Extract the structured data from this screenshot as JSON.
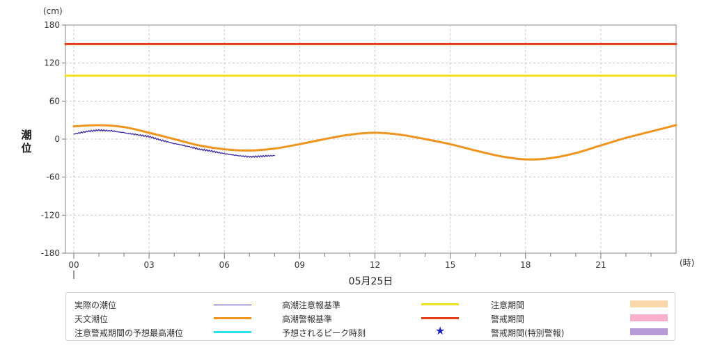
{
  "chart_data": {
    "type": "line",
    "y_unit": "(cm)",
    "x_unit": "(時)",
    "ylabel": "潮位",
    "date_label": "05月25日",
    "ylim": [
      -180,
      180
    ],
    "xlim": [
      0,
      24
    ],
    "y_ticks": [
      180,
      120,
      60,
      0,
      -60,
      -120,
      -180
    ],
    "x_ticks": [
      {
        "x": 0,
        "label": "00"
      },
      {
        "x": 3,
        "label": "03"
      },
      {
        "x": 6,
        "label": "06"
      },
      {
        "x": 9,
        "label": "09"
      },
      {
        "x": 12,
        "label": "12"
      },
      {
        "x": 15,
        "label": "15"
      },
      {
        "x": 18,
        "label": "18"
      },
      {
        "x": 21,
        "label": "21"
      }
    ],
    "grid": true,
    "series": [
      {
        "name": "天文潮位",
        "color": "#f0941e",
        "x": [
          0,
          1,
          2,
          3,
          4,
          5,
          6,
          7,
          8,
          9,
          10,
          11,
          12,
          13,
          14,
          15,
          16,
          17,
          18,
          19,
          20,
          21,
          22,
          23,
          24
        ],
        "y": [
          20,
          22,
          19,
          10,
          0,
          -10,
          -16,
          -18,
          -15,
          -8,
          0,
          7,
          10,
          7,
          0,
          -8,
          -18,
          -27,
          -32,
          -30,
          -22,
          -10,
          2,
          12,
          22
        ]
      },
      {
        "name": "実際の潮位",
        "color": "#3a24a8",
        "x": [
          0,
          0.5,
          1,
          1.5,
          2,
          2.5,
          3,
          3.5,
          4,
          4.5,
          5,
          5.5,
          6,
          6.5,
          7,
          7.5,
          8
        ],
        "y": [
          8,
          12,
          14,
          13,
          10,
          7,
          4,
          -2,
          -7,
          -11,
          -16,
          -19,
          -23,
          -26,
          -28,
          -27,
          -26
        ]
      },
      {
        "name": "高潮注意報基準",
        "color": "#f2e21b",
        "x": [
          0,
          24
        ],
        "y": [
          100,
          100
        ]
      },
      {
        "name": "高潮警報基準",
        "color": "#e2401a",
        "x": [
          0,
          24
        ],
        "y": [
          150,
          150
        ]
      }
    ]
  },
  "legend": [
    {
      "label": "実際の潮位",
      "type": "thin-line",
      "color": "#3a24a8"
    },
    {
      "label": "天文潮位",
      "type": "line",
      "color": "#f0941e"
    },
    {
      "label": "注意警戒期間の予想最高潮位",
      "type": "line",
      "color": "#27e0ee"
    },
    {
      "label": "高潮注意報基準",
      "type": "line",
      "color": "#f2e21b"
    },
    {
      "label": "高潮警報基準",
      "type": "line",
      "color": "#e2401a"
    },
    {
      "label": "予想されるピーク時刻",
      "type": "star",
      "color": "#1a22c4"
    },
    {
      "label": "注意期間",
      "type": "box",
      "color": "#f9d7a9"
    },
    {
      "label": "警戒期間",
      "type": "box",
      "color": "#f6aecb"
    },
    {
      "label": "警戒期間(特別警報)",
      "type": "box",
      "color": "#b99ad9"
    }
  ]
}
